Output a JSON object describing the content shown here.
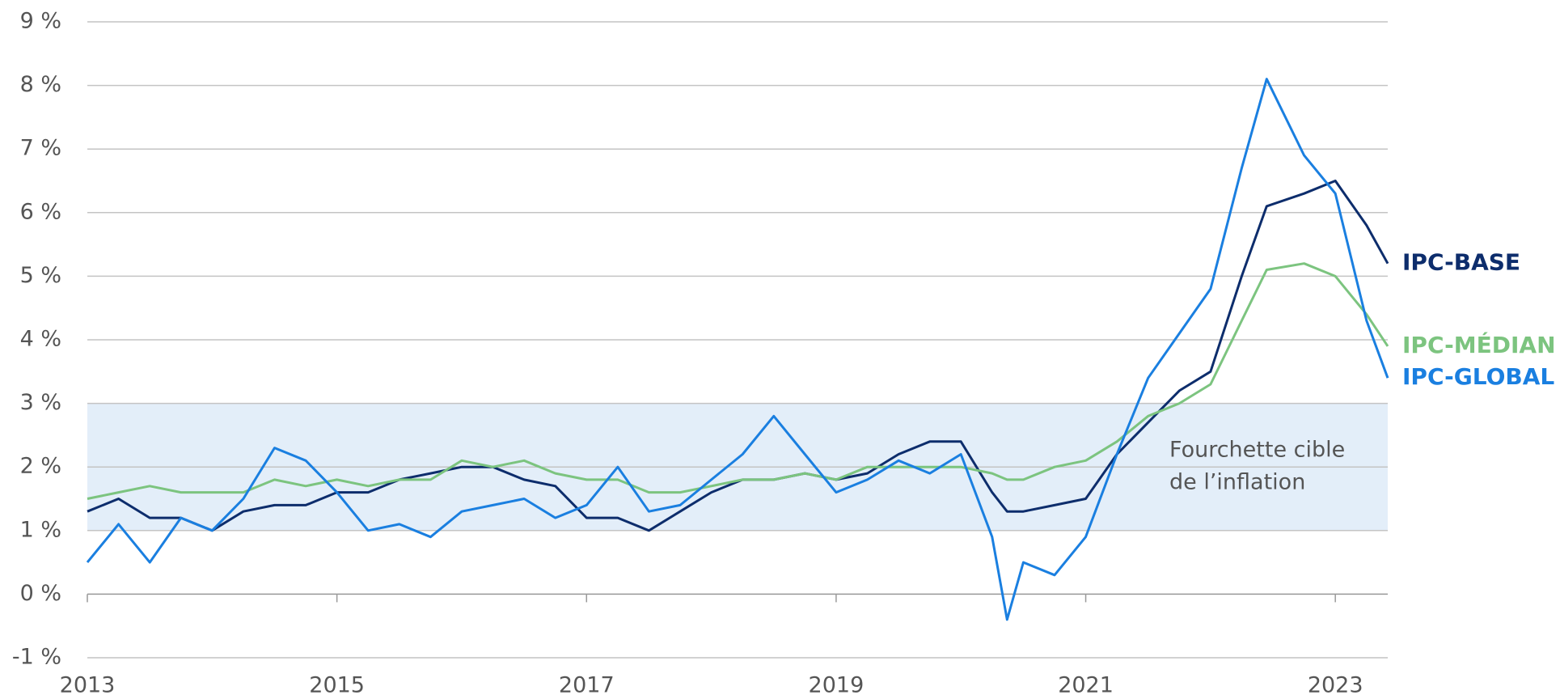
{
  "chart_data": {
    "type": "line",
    "x": [
      2013,
      2013.25,
      2013.5,
      2013.75,
      2014,
      2014.25,
      2014.5,
      2014.75,
      2015,
      2015.25,
      2015.5,
      2015.75,
      2016,
      2016.25,
      2016.5,
      2016.75,
      2017,
      2017.25,
      2017.5,
      2017.75,
      2018,
      2018.25,
      2018.5,
      2018.75,
      2019,
      2019.25,
      2019.5,
      2019.75,
      2020,
      2020.25,
      2020.37,
      2020.5,
      2020.75,
      2021,
      2021.25,
      2021.5,
      2021.75,
      2022,
      2022.25,
      2022.45,
      2022.75,
      2023,
      2023.25,
      2023.42
    ],
    "series": [
      {
        "name": "IPC-BASE",
        "color": "#0d2d6c",
        "values": [
          1.3,
          1.5,
          1.2,
          1.2,
          1.0,
          1.3,
          1.4,
          1.4,
          1.6,
          1.6,
          1.8,
          1.9,
          2.0,
          2.0,
          1.8,
          1.7,
          1.2,
          1.2,
          1.0,
          1.3,
          1.6,
          1.8,
          1.8,
          1.9,
          1.8,
          1.9,
          2.2,
          2.4,
          2.4,
          1.6,
          1.3,
          1.3,
          1.4,
          1.5,
          2.2,
          2.7,
          3.2,
          3.5,
          5.0,
          6.1,
          6.3,
          6.5,
          5.8,
          5.2
        ]
      },
      {
        "name": "IPC-MÉDIAN",
        "color": "#7cc47f",
        "values": [
          1.5,
          1.6,
          1.7,
          1.6,
          1.6,
          1.6,
          1.8,
          1.7,
          1.8,
          1.7,
          1.8,
          1.8,
          2.1,
          2.0,
          2.1,
          1.9,
          1.8,
          1.8,
          1.6,
          1.6,
          1.7,
          1.8,
          1.8,
          1.9,
          1.8,
          2.0,
          2.0,
          2.0,
          2.0,
          1.9,
          1.8,
          1.8,
          2.0,
          2.1,
          2.4,
          2.8,
          3.0,
          3.3,
          4.3,
          5.1,
          5.2,
          5.0,
          4.4,
          3.9
        ]
      },
      {
        "name": "IPC-GLOBAL",
        "color": "#1a7fe0",
        "values": [
          0.5,
          1.1,
          0.5,
          1.2,
          1.0,
          1.5,
          2.3,
          2.1,
          1.6,
          1.0,
          1.1,
          0.9,
          1.3,
          1.4,
          1.5,
          1.2,
          1.4,
          2.0,
          1.3,
          1.4,
          1.8,
          2.2,
          2.8,
          2.2,
          1.6,
          1.8,
          2.1,
          1.9,
          2.2,
          0.9,
          -0.4,
          0.5,
          0.3,
          0.9,
          2.2,
          3.4,
          4.1,
          4.8,
          6.7,
          8.1,
          6.9,
          6.3,
          4.3,
          3.4
        ]
      }
    ],
    "band": {
      "range": [
        1,
        3
      ],
      "color": "#e3eef9",
      "label": [
        "Fourchette cible",
        "de l’inflation"
      ]
    },
    "xlim": [
      2013,
      2023.42
    ],
    "xticks": [
      2013,
      2015,
      2017,
      2019,
      2021,
      2023
    ],
    "ylim": [
      -1,
      9
    ],
    "yticks": [
      {
        "value": -1,
        "label": "-1 %"
      },
      {
        "value": 0,
        "label": "0 %"
      },
      {
        "value": 1,
        "label": "1 %"
      },
      {
        "value": 2,
        "label": "2 %"
      },
      {
        "value": 3,
        "label": "3 %"
      },
      {
        "value": 4,
        "label": "4 %"
      },
      {
        "value": 5,
        "label": "5 %"
      },
      {
        "value": 6,
        "label": "6 %"
      },
      {
        "value": 7,
        "label": "7 %"
      },
      {
        "value": 8,
        "label": "8 %"
      },
      {
        "value": 9,
        "label": "9 %"
      }
    ],
    "grid": true
  }
}
